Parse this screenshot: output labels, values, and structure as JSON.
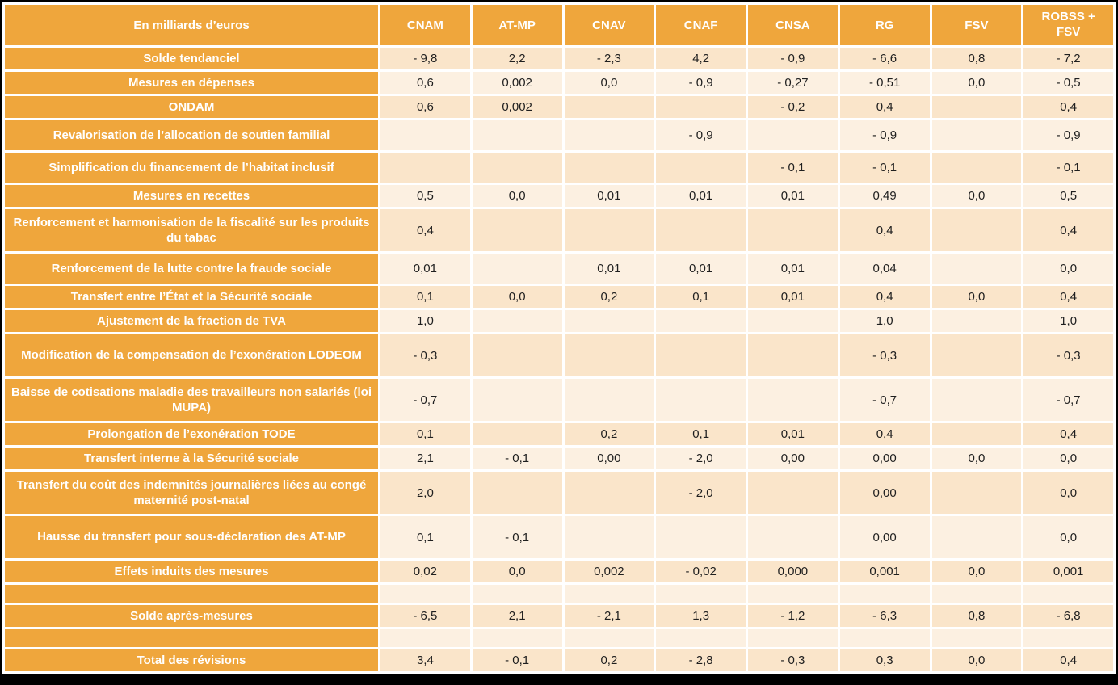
{
  "colors": {
    "header_bg": "#EFA63C",
    "row_dark": "#FAE5CA",
    "row_light": "#FCF0E1",
    "header_text": "#FFFFFF",
    "value_text": "#1F1F1F",
    "gridline": "#FFFFFF",
    "frame": "#000000"
  },
  "chart_data": {
    "type": "table",
    "unit_label": "En milliards d’euros",
    "columns": [
      "En milliards d’euros",
      "CNAM",
      "AT-MP",
      "CNAV",
      "CNAF",
      "CNSA",
      "RG",
      "FSV",
      "ROBSS + FSV"
    ],
    "rows": [
      {
        "label": "Solde tendanciel",
        "values": [
          "- 9,8",
          "2,2",
          "- 2,3",
          "4,2",
          "- 0,9",
          "- 6,6",
          "0,8",
          "- 7,2"
        ]
      },
      {
        "label": "Mesures en dépenses",
        "values": [
          "0,6",
          "0,002",
          "0,0",
          "- 0,9",
          "- 0,27",
          "- 0,51",
          "0,0",
          "- 0,5"
        ]
      },
      {
        "label": "ONDAM",
        "values": [
          "0,6",
          "0,002",
          "",
          "",
          "- 0,2",
          "0,4",
          "",
          "0,4"
        ]
      },
      {
        "label": "Revalorisation de l’allocation de soutien familial",
        "values": [
          "",
          "",
          "",
          "- 0,9",
          "",
          "- 0,9",
          "",
          "- 0,9"
        ]
      },
      {
        "label": "Simplification du financement de l’habitat inclusif",
        "values": [
          "",
          "",
          "",
          "",
          "- 0,1",
          "- 0,1",
          "",
          "- 0,1"
        ]
      },
      {
        "label": "Mesures en recettes",
        "values": [
          "0,5",
          "0,0",
          "0,01",
          "0,01",
          "0,01",
          "0,49",
          "0,0",
          "0,5"
        ]
      },
      {
        "label": "Renforcement et harmonisation de la fiscalité sur les produits du tabac",
        "values": [
          "0,4",
          "",
          "",
          "",
          "",
          "0,4",
          "",
          "0,4"
        ]
      },
      {
        "label": "Renforcement de la lutte contre la fraude sociale",
        "values": [
          "0,01",
          "",
          "0,01",
          "0,01",
          "0,01",
          "0,04",
          "",
          "0,0"
        ]
      },
      {
        "label": "Transfert entre l’État et la Sécurité sociale",
        "values": [
          "0,1",
          "0,0",
          "0,2",
          "0,1",
          "0,01",
          "0,4",
          "0,0",
          "0,4"
        ]
      },
      {
        "label": "Ajustement de la fraction de TVA",
        "values": [
          "1,0",
          "",
          "",
          "",
          "",
          "1,0",
          "",
          "1,0"
        ]
      },
      {
        "label": "Modification de la compensation de l’exonération LODEOM",
        "values": [
          "- 0,3",
          "",
          "",
          "",
          "",
          "- 0,3",
          "",
          "- 0,3"
        ]
      },
      {
        "label": "Baisse de cotisations maladie des travailleurs non salariés (loi MUPA)",
        "values": [
          "- 0,7",
          "",
          "",
          "",
          "",
          "- 0,7",
          "",
          "- 0,7"
        ]
      },
      {
        "label": "Prolongation de l’exonération TODE",
        "values": [
          "0,1",
          "",
          "0,2",
          "0,1",
          "0,01",
          "0,4",
          "",
          "0,4"
        ]
      },
      {
        "label": "Transfert interne à la Sécurité sociale",
        "values": [
          "2,1",
          "- 0,1",
          "0,00",
          "- 2,0",
          "0,00",
          "0,00",
          "0,0",
          "0,0"
        ]
      },
      {
        "label": "Transfert du coût des indemnités journalières liées au congé maternité post-natal",
        "values": [
          "2,0",
          "",
          "",
          "- 2,0",
          "",
          "0,00",
          "",
          "0,0"
        ]
      },
      {
        "label": "Hausse du transfert pour sous-déclaration des AT-MP",
        "values": [
          "0,1",
          "- 0,1",
          "",
          "",
          "",
          "0,00",
          "",
          "0,0"
        ]
      },
      {
        "label": "Effets induits des mesures",
        "values": [
          "0,02",
          "0,0",
          "0,002",
          "- 0,02",
          "0,000",
          "0,001",
          "0,0",
          "0,001"
        ]
      },
      {
        "label": "",
        "values": [
          "",
          "",
          "",
          "",
          "",
          "",
          "",
          ""
        ]
      },
      {
        "label": "Solde après-mesures",
        "values": [
          "- 6,5",
          "2,1",
          "- 2,1",
          "1,3",
          "- 1,2",
          "- 6,3",
          "0,8",
          "- 6,8"
        ]
      },
      {
        "label": "",
        "values": [
          "",
          "",
          "",
          "",
          "",
          "",
          "",
          ""
        ]
      },
      {
        "label": "Total des révisions",
        "values": [
          "3,4",
          "- 0,1",
          "0,2",
          "- 2,8",
          "- 0,3",
          "0,3",
          "0,0",
          "0,4"
        ]
      }
    ]
  }
}
